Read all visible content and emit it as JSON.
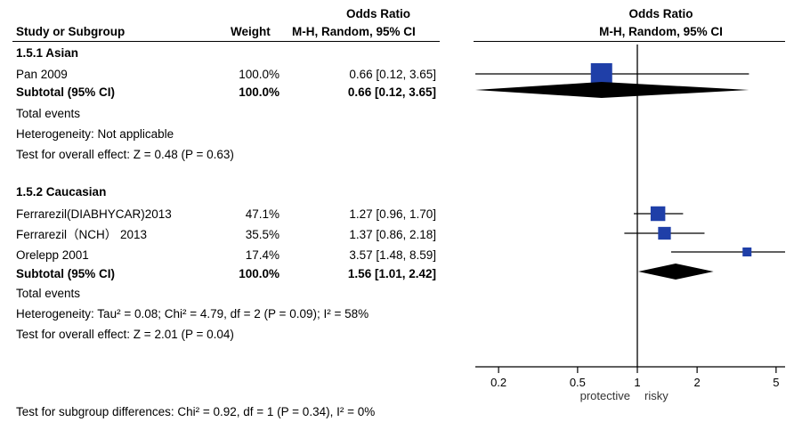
{
  "header": {
    "study_col": "Study or Subgroup",
    "weight_col": "Weight",
    "or_title": "Odds Ratio",
    "or_method": "M-H, Random, 95% CI",
    "plot_title": "Odds Ratio",
    "plot_method": "M-H, Random, 95% CI"
  },
  "groups": [
    {
      "label": "1.5.1 Asian",
      "studies": [
        {
          "name": "Pan 2009",
          "weight": "100.0%",
          "ci_text": "0.66 [0.12, 3.65]"
        }
      ],
      "subtotal": {
        "label": "Subtotal (95% CI)",
        "weight": "100.0%",
        "ci_text": "0.66 [0.12, 3.65]"
      },
      "total_events": "Total events",
      "heterogeneity": "Heterogeneity: Not applicable",
      "overall_effect": "Test for overall effect: Z = 0.48 (P = 0.63)"
    },
    {
      "label": "1.5.2 Caucasian",
      "studies": [
        {
          "name": "Ferrarezil(DIABHYCAR)2013",
          "weight": "47.1%",
          "ci_text": "1.27 [0.96, 1.70]"
        },
        {
          "name": "Ferrarezil（NCH） 2013",
          "weight": "35.5%",
          "ci_text": "1.37 [0.86, 2.18]"
        },
        {
          "name": "Orelepp 2001",
          "weight": "17.4%",
          "ci_text": "3.57 [1.48, 8.59]"
        }
      ],
      "subtotal": {
        "label": "Subtotal (95% CI)",
        "weight": "100.0%",
        "ci_text": "1.56 [1.01, 2.42]"
      },
      "total_events": "Total events",
      "heterogeneity": "Heterogeneity: Tau² = 0.08; Chi² = 4.79, df = 2 (P = 0.09); I² = 58%",
      "overall_effect": "Test for overall effect: Z = 2.01 (P = 0.04)"
    }
  ],
  "subgroup_test": "Test for subgroup differences: Chi² = 0.92, df = 1 (P = 0.34), I² = 0%",
  "chart_data": {
    "type": "forest",
    "title": "Odds Ratio",
    "subtitle": "M-H, Random, 95% CI",
    "x_scale": "log",
    "xlim": [
      0.1,
      7
    ],
    "reference_line": 1,
    "ticks": [
      0.2,
      0.5,
      1,
      2,
      5
    ],
    "tick_labels": [
      "0.2",
      "0.5",
      "1",
      "2",
      "5"
    ],
    "favours_left": "protective",
    "favours_right": "risky",
    "marker_color": "#1f3fa8",
    "studies": [
      {
        "name": "Pan 2009",
        "or": 0.66,
        "lo": 0.12,
        "hi": 3.65,
        "weight": 100.0
      },
      {
        "name": "Ferrarezil(DIABHYCAR)2013",
        "or": 1.27,
        "lo": 0.96,
        "hi": 1.7,
        "weight": 47.1
      },
      {
        "name": "Ferrarezil（NCH） 2013",
        "or": 1.37,
        "lo": 0.86,
        "hi": 2.18,
        "weight": 35.5
      },
      {
        "name": "Orelepp 2001",
        "or": 3.57,
        "lo": 1.48,
        "hi": 8.59,
        "weight": 17.4
      }
    ],
    "subtotals": [
      {
        "name": "1.5.1 Asian",
        "or": 0.66,
        "lo": 0.12,
        "hi": 3.65
      },
      {
        "name": "1.5.2 Caucasian",
        "or": 1.56,
        "lo": 1.01,
        "hi": 2.42
      }
    ]
  }
}
